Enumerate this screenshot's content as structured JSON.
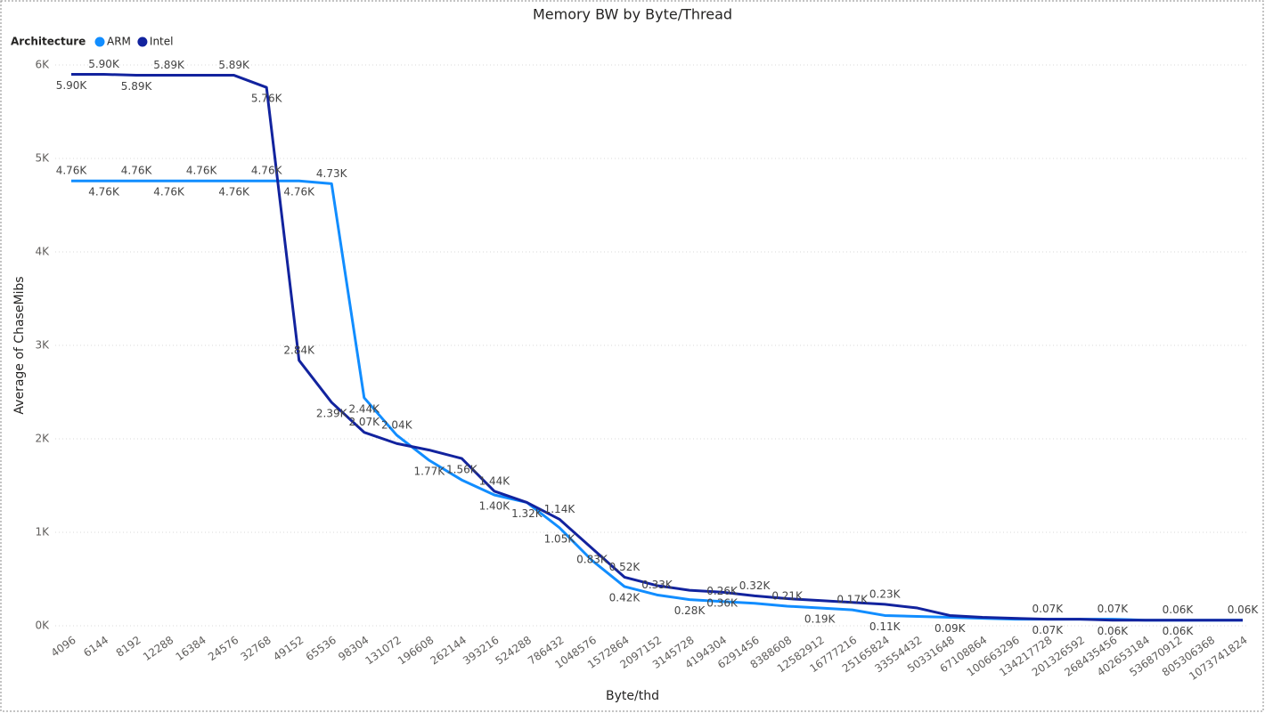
{
  "chart_data": {
    "type": "line",
    "title": "Memory BW by Byte/Thread",
    "legend_title": "Architecture",
    "x_label": "Byte/thd",
    "y_label": "Average of ChaseMibs",
    "categories": [
      "4096",
      "6144",
      "8192",
      "12288",
      "16384",
      "24576",
      "32768",
      "49152",
      "65536",
      "98304",
      "131072",
      "196608",
      "262144",
      "393216",
      "524288",
      "786432",
      "1048576",
      "1572864",
      "2097152",
      "3145728",
      "4194304",
      "6291456",
      "8388608",
      "12582912",
      "16777216",
      "25165824",
      "33554432",
      "50331648",
      "67108864",
      "100663296",
      "134217728",
      "201326592",
      "268435456",
      "402653184",
      "536870912",
      "805306368",
      "1073741824"
    ],
    "ylim": [
      0,
      6000
    ],
    "yticks": [
      {
        "value": 0,
        "label": "0K"
      },
      {
        "value": 1000,
        "label": "1K"
      },
      {
        "value": 2000,
        "label": "2K"
      },
      {
        "value": 3000,
        "label": "3K"
      },
      {
        "value": 4000,
        "label": "4K"
      },
      {
        "value": 5000,
        "label": "5K"
      },
      {
        "value": 6000,
        "label": "6K"
      }
    ],
    "grid": true,
    "legend_position": "top-left",
    "series": [
      {
        "name": "ARM",
        "color": "#118dff",
        "values": [
          4760,
          4760,
          4760,
          4760,
          4760,
          4760,
          4760,
          4760,
          4730,
          2440,
          2040,
          1770,
          1560,
          1400,
          1320,
          1050,
          700,
          420,
          330,
          280,
          260,
          240,
          210,
          190,
          170,
          110,
          100,
          90,
          80,
          70,
          70,
          70,
          70,
          60,
          60,
          60,
          60
        ],
        "value_labels": [
          "4.76K",
          "4.76K",
          "4.76K",
          "4.76K",
          "4.76K",
          "4.76K",
          "4.76K",
          "4.76K",
          "4.73K",
          "2.44K",
          "2.04K",
          "1.77K",
          "1.56K",
          "1.40K",
          null,
          "1.05K",
          null,
          "0.42K",
          "0.33K",
          "0.28K",
          "0.26K",
          null,
          "0.21K",
          "0.19K",
          "0.17K",
          "0.11K",
          null,
          "0.09K",
          null,
          null,
          "0.07K",
          null,
          "0.07K",
          null,
          "0.06K",
          null,
          "0.06K"
        ]
      },
      {
        "name": "Intel",
        "color": "#12239e",
        "values": [
          5900,
          5900,
          5890,
          5890,
          5890,
          5890,
          5760,
          2840,
          2390,
          2070,
          1950,
          1880,
          1790,
          1440,
          1320,
          1140,
          830,
          520,
          430,
          380,
          360,
          320,
          290,
          270,
          250,
          230,
          190,
          110,
          90,
          80,
          70,
          70,
          60,
          60,
          60,
          60,
          60
        ],
        "value_labels": [
          "5.90K",
          "5.90K",
          "5.89K",
          "5.89K",
          null,
          "5.89K",
          "5.76K",
          "2.84K",
          "2.39K",
          "2.07K",
          null,
          null,
          null,
          "1.44K",
          "1.32K",
          "1.14K",
          "0.83K",
          "0.52K",
          null,
          null,
          "0.36K",
          "0.32K",
          null,
          null,
          null,
          "0.23K",
          null,
          null,
          null,
          null,
          "0.07K",
          null,
          "0.06K",
          null,
          "0.06K",
          null,
          null
        ]
      }
    ]
  }
}
